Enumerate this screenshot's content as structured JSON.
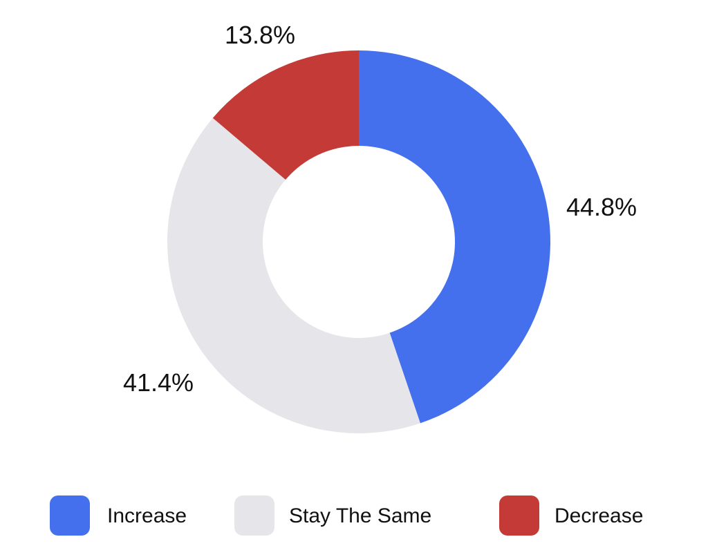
{
  "chart_data": {
    "type": "pie",
    "variant": "donut",
    "title": "",
    "categories": [
      "Increase",
      "Stay The Same",
      "Decrease"
    ],
    "values": [
      44.8,
      41.4,
      13.8
    ],
    "labels": [
      "44.8%",
      "41.4%",
      "13.8%"
    ],
    "colors": [
      "#4470ee",
      "#e6e6ea",
      "#c33a36"
    ],
    "start_angle_deg": 0,
    "direction": "clockwise",
    "legend": {
      "placement": "bottom",
      "items": [
        {
          "label": "Increase",
          "color": "#4470ee"
        },
        {
          "label": "Stay The Same",
          "color": "#e6e6ea"
        },
        {
          "label": "Decrease",
          "color": "#c33a36"
        }
      ]
    }
  }
}
